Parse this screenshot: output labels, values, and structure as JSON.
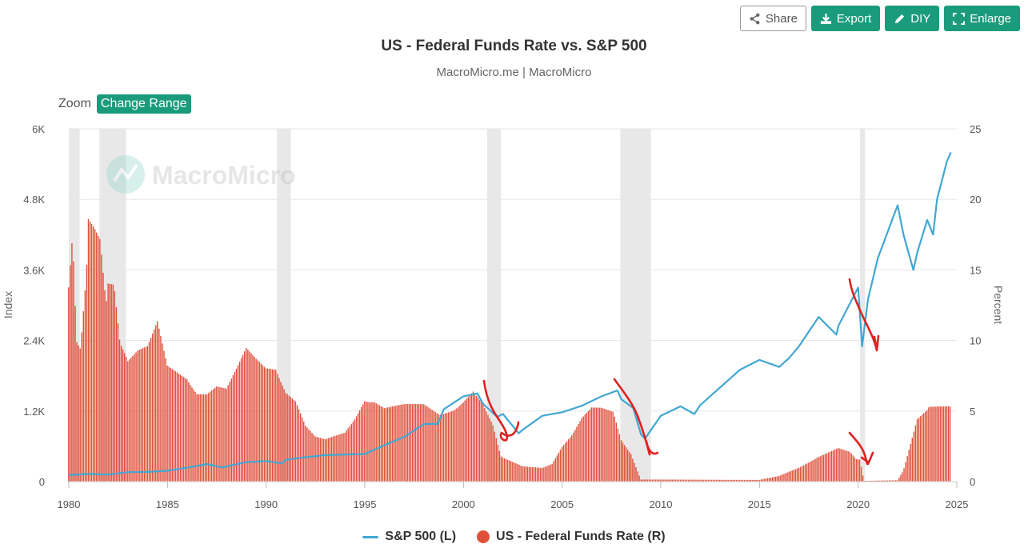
{
  "toolbar": {
    "share_label": "Share",
    "export_label": "Export",
    "diy_label": "DIY",
    "enlarge_label": "Enlarge"
  },
  "header": {
    "title": "US - Federal Funds Rate vs. S&P 500",
    "subtitle": "MacroMicro.me | MacroMicro"
  },
  "zoom": {
    "label": "Zoom",
    "button_label": "Change Range"
  },
  "watermark": {
    "text": "MacroMicro"
  },
  "legend": {
    "items": [
      {
        "label": "S&P 500 (L)",
        "color": "#41a7d3"
      },
      {
        "label": "US - Federal Funds Rate (R)",
        "color": "#e04f3a"
      }
    ]
  },
  "colors": {
    "accent": "#1a9b7b",
    "sp500": "#41a7d3",
    "fed_rate": "#e04f3a",
    "recession": "#e8e8e8",
    "annotation": "#e02020"
  },
  "chart_data": {
    "type": "bar",
    "title": "US - Federal Funds Rate vs. S&P 500",
    "x_axis": {
      "min": 1980,
      "max": 2025,
      "ticks": [
        "1980",
        "1985",
        "1990",
        "1995",
        "2000",
        "2005",
        "2010",
        "2015",
        "2020",
        "2025"
      ]
    },
    "y_left": {
      "label": "Index",
      "min": 0,
      "max": 6000,
      "ticks": [
        "0",
        "1.2K",
        "2.4K",
        "3.6K",
        "4.8K",
        "6K"
      ],
      "tick_values": [
        0,
        1200,
        2400,
        3600,
        4800,
        6000
      ]
    },
    "y_right": {
      "label": "Percent",
      "min": 0,
      "max": 25,
      "ticks": [
        "0",
        "5",
        "10",
        "15",
        "20",
        "25"
      ],
      "tick_values": [
        0,
        5,
        10,
        15,
        20,
        25
      ]
    },
    "grid": true,
    "legend_position": "bottom-center",
    "recessions": [
      [
        1980.0,
        1980.55
      ],
      [
        1981.55,
        1982.9
      ],
      [
        1990.55,
        1991.25
      ],
      [
        2001.2,
        2001.9
      ],
      [
        2007.95,
        2009.5
      ],
      [
        2020.1,
        2020.35
      ]
    ],
    "series": [
      {
        "name": "S&P 500 (L)",
        "type": "line",
        "axis": "left",
        "points": [
          [
            1980,
            110
          ],
          [
            1981,
            130
          ],
          [
            1982,
            120
          ],
          [
            1983,
            160
          ],
          [
            1984,
            165
          ],
          [
            1985,
            185
          ],
          [
            1986,
            235
          ],
          [
            1987,
            300
          ],
          [
            1987.8,
            240
          ],
          [
            1988,
            260
          ],
          [
            1989,
            330
          ],
          [
            1990,
            350
          ],
          [
            1990.8,
            310
          ],
          [
            1991,
            370
          ],
          [
            1992,
            415
          ],
          [
            1993,
            450
          ],
          [
            1994,
            460
          ],
          [
            1995,
            470
          ],
          [
            1996,
            620
          ],
          [
            1997,
            760
          ],
          [
            1998,
            980
          ],
          [
            1998.7,
            980
          ],
          [
            1999,
            1230
          ],
          [
            2000,
            1450
          ],
          [
            2000.7,
            1500
          ],
          [
            2001,
            1320
          ],
          [
            2001.7,
            1100
          ],
          [
            2002,
            1150
          ],
          [
            2002.8,
            820
          ],
          [
            2003,
            880
          ],
          [
            2004,
            1120
          ],
          [
            2005,
            1180
          ],
          [
            2006,
            1290
          ],
          [
            2007,
            1450
          ],
          [
            2007.8,
            1550
          ],
          [
            2008,
            1400
          ],
          [
            2008.6,
            1250
          ],
          [
            2009,
            800
          ],
          [
            2009.2,
            730
          ],
          [
            2010,
            1120
          ],
          [
            2011,
            1280
          ],
          [
            2011.7,
            1150
          ],
          [
            2012,
            1300
          ],
          [
            2013,
            1600
          ],
          [
            2014,
            1900
          ],
          [
            2015,
            2070
          ],
          [
            2016,
            1950
          ],
          [
            2016.5,
            2100
          ],
          [
            2017,
            2300
          ],
          [
            2018,
            2800
          ],
          [
            2018.9,
            2500
          ],
          [
            2019,
            2650
          ],
          [
            2020,
            3300
          ],
          [
            2020.2,
            2300
          ],
          [
            2020.5,
            3100
          ],
          [
            2021,
            3800
          ],
          [
            2022,
            4700
          ],
          [
            2022.3,
            4200
          ],
          [
            2022.8,
            3600
          ],
          [
            2023,
            3900
          ],
          [
            2023.5,
            4450
          ],
          [
            2023.8,
            4200
          ],
          [
            2024,
            4800
          ],
          [
            2024.5,
            5450
          ],
          [
            2024.7,
            5600
          ]
        ]
      },
      {
        "name": "US - Federal Funds Rate (R)",
        "type": "bar",
        "axis": "right",
        "points": [
          [
            1980,
            13.8
          ],
          [
            1980.2,
            17.6
          ],
          [
            1980.4,
            10
          ],
          [
            1980.6,
            9.5
          ],
          [
            1980.9,
            15
          ],
          [
            1981,
            19
          ],
          [
            1981.3,
            18.5
          ],
          [
            1981.6,
            17.8
          ],
          [
            1981.9,
            13
          ],
          [
            1982,
            14.5
          ],
          [
            1982.3,
            14.3
          ],
          [
            1982.6,
            10
          ],
          [
            1982.9,
            9
          ],
          [
            1983,
            8.6
          ],
          [
            1983.5,
            9.3
          ],
          [
            1984,
            9.6
          ],
          [
            1984.5,
            11.4
          ],
          [
            1985,
            8.3
          ],
          [
            1985.5,
            7.9
          ],
          [
            1986,
            7.5
          ],
          [
            1986.5,
            6.4
          ],
          [
            1987,
            6.3
          ],
          [
            1987.5,
            6.8
          ],
          [
            1988,
            6.6
          ],
          [
            1988.5,
            8.0
          ],
          [
            1989,
            9.5
          ],
          [
            1989.5,
            8.8
          ],
          [
            1990,
            8.2
          ],
          [
            1990.5,
            8.2
          ],
          [
            1991,
            6.5
          ],
          [
            1991.5,
            5.8
          ],
          [
            1992,
            4.0
          ],
          [
            1992.5,
            3.2
          ],
          [
            1993,
            3.0
          ],
          [
            1994,
            3.5
          ],
          [
            1994.5,
            4.5
          ],
          [
            1995,
            5.9
          ],
          [
            1995.5,
            5.8
          ],
          [
            1996,
            5.3
          ],
          [
            1997,
            5.5
          ],
          [
            1998,
            5.5
          ],
          [
            1998.8,
            4.8
          ],
          [
            1999,
            4.9
          ],
          [
            1999.5,
            5.2
          ],
          [
            2000,
            5.8
          ],
          [
            2000.5,
            6.5
          ],
          [
            2001,
            5.5
          ],
          [
            2001.5,
            4.0
          ],
          [
            2001.9,
            1.8
          ],
          [
            2002,
            1.7
          ],
          [
            2003,
            1.1
          ],
          [
            2004,
            1.0
          ],
          [
            2004.5,
            1.3
          ],
          [
            2005,
            2.5
          ],
          [
            2005.5,
            3.3
          ],
          [
            2006,
            4.5
          ],
          [
            2006.5,
            5.25
          ],
          [
            2007,
            5.25
          ],
          [
            2007.6,
            5.0
          ],
          [
            2008,
            3.0
          ],
          [
            2008.5,
            2.0
          ],
          [
            2008.9,
            0.5
          ],
          [
            2009,
            0.15
          ],
          [
            2015,
            0.12
          ],
          [
            2016,
            0.4
          ],
          [
            2017,
            1.0
          ],
          [
            2018,
            1.8
          ],
          [
            2019,
            2.4
          ],
          [
            2019.6,
            2.1
          ],
          [
            2019.9,
            1.6
          ],
          [
            2020.1,
            1.55
          ],
          [
            2020.3,
            0.05
          ],
          [
            2022,
            0.1
          ],
          [
            2022.3,
            0.8
          ],
          [
            2022.6,
            2.4
          ],
          [
            2023,
            4.5
          ],
          [
            2023.5,
            5.1
          ],
          [
            2023.6,
            5.33
          ],
          [
            2024.7,
            5.33
          ]
        ]
      }
    ]
  }
}
